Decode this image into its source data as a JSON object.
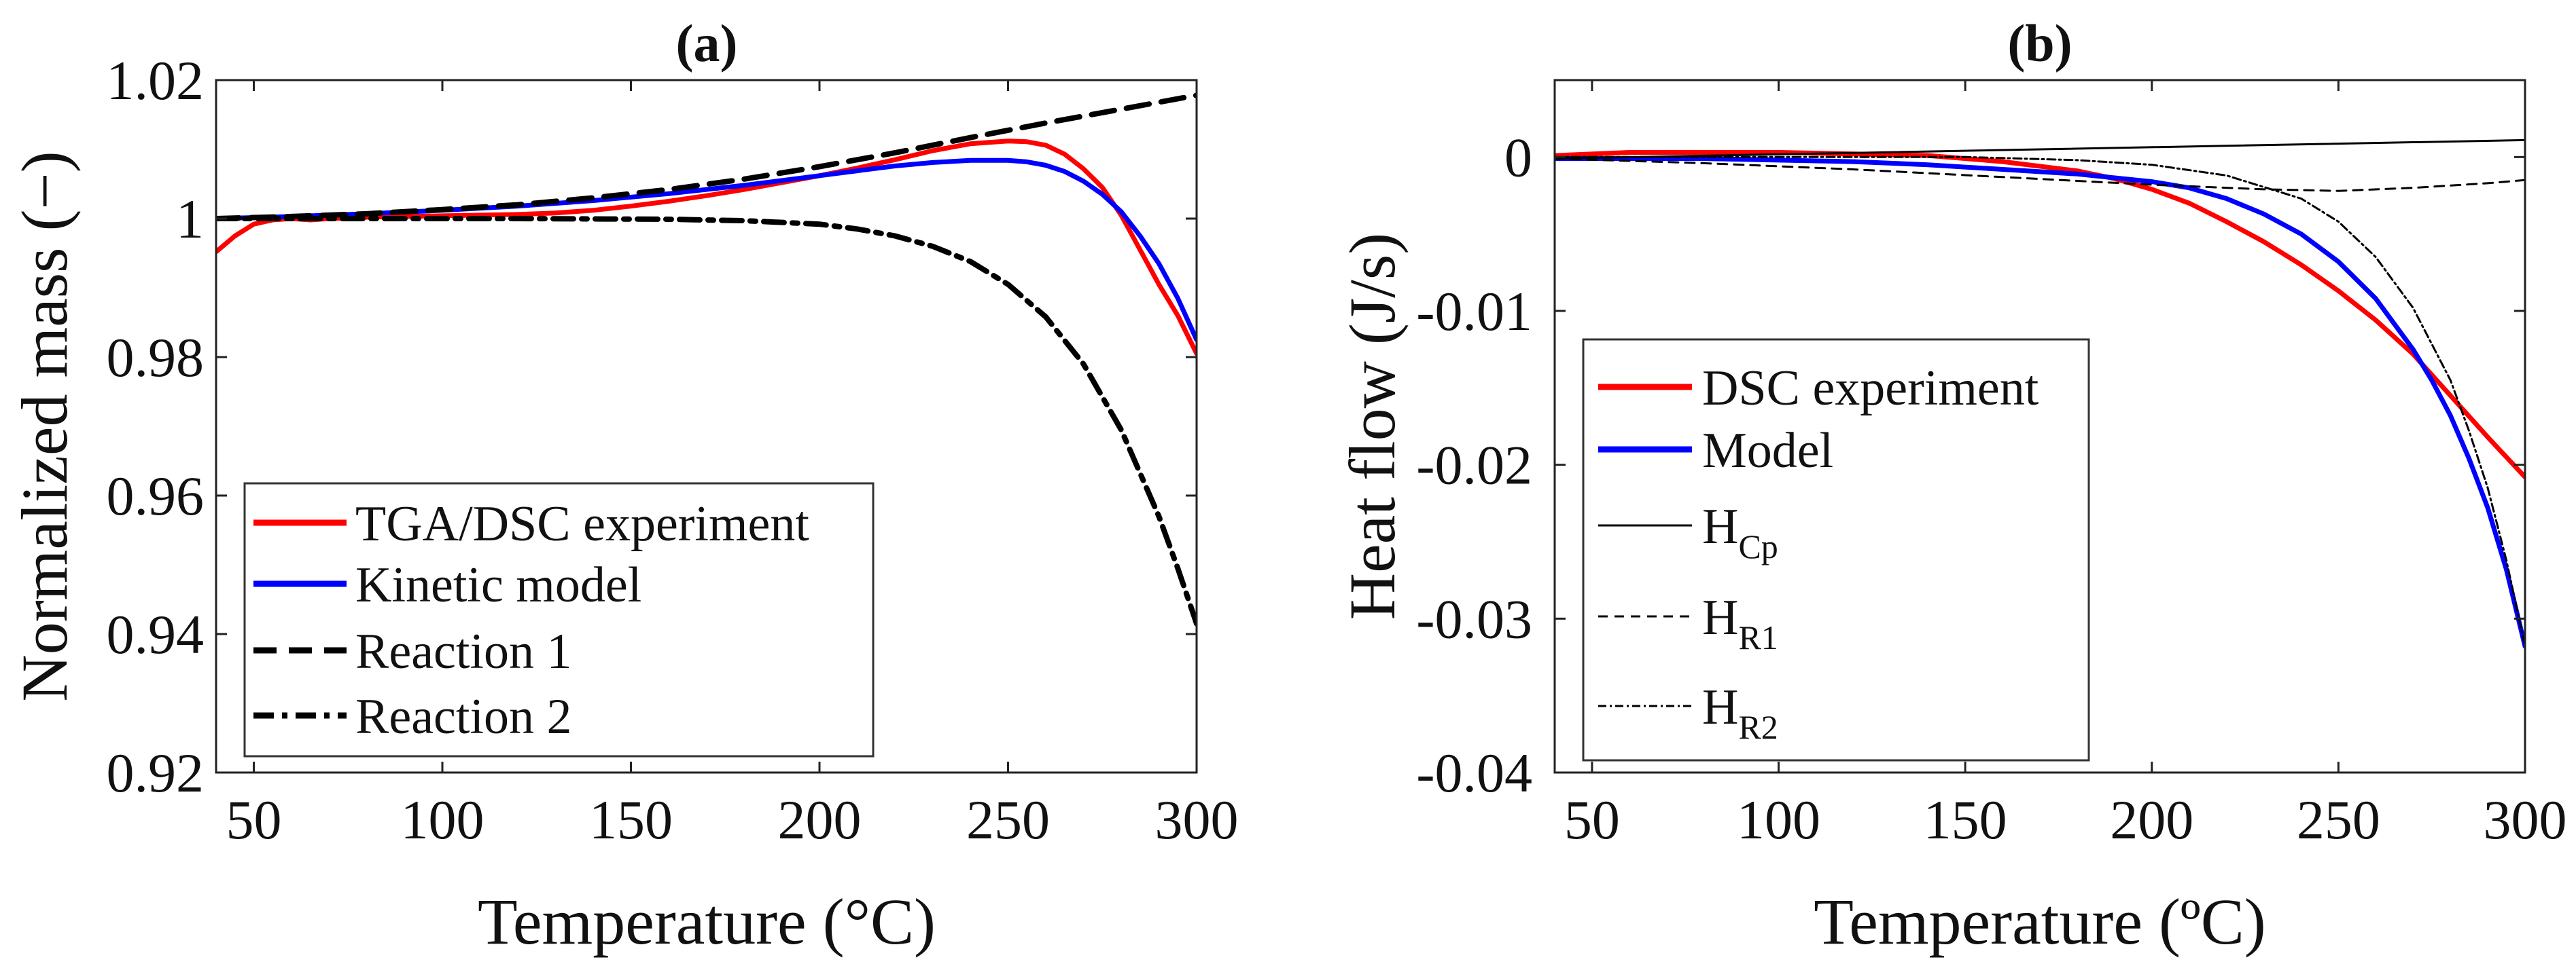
{
  "chart_data": [
    {
      "type": "line",
      "panel": "(a)",
      "title": "(a)",
      "xlabel": "Temperature (°C)",
      "ylabel": "Normalized mass (−)",
      "xlim": [
        40,
        300
      ],
      "ylim": [
        0.92,
        1.02
      ],
      "xticks": [
        50,
        100,
        150,
        200,
        250,
        300
      ],
      "yticks": [
        0.92,
        0.94,
        0.96,
        0.98,
        1,
        1.02
      ],
      "xtick_labels": [
        "50",
        "100",
        "150",
        "200",
        "250",
        "300"
      ],
      "ytick_labels": [
        "0.92",
        "0.94",
        "0.96",
        "0.98",
        "1",
        "1.02"
      ],
      "legend_position": "bottom-left",
      "series": [
        {
          "name": "TGA/DSC experiment",
          "color": "#ff0000",
          "style": "solid",
          "x": [
            40,
            45,
            50,
            55,
            60,
            65,
            70,
            80,
            90,
            100,
            110,
            120,
            130,
            140,
            150,
            160,
            170,
            180,
            190,
            200,
            210,
            220,
            230,
            240,
            250,
            255,
            260,
            265,
            270,
            275,
            280,
            285,
            290,
            295,
            300
          ],
          "y": [
            0.9952,
            0.9975,
            0.9992,
            0.9998,
            1.0,
            0.9998,
            1.0,
            1.0002,
            1.0003,
            1.0004,
            1.0005,
            1.0006,
            1.0008,
            1.0012,
            1.0018,
            1.0025,
            1.0033,
            1.0042,
            1.0052,
            1.0062,
            1.0073,
            1.0085,
            1.0098,
            1.0108,
            1.0112,
            1.0111,
            1.0106,
            1.0093,
            1.0072,
            1.0045,
            1.0005,
            0.9955,
            0.9905,
            0.986,
            0.9805
          ]
        },
        {
          "name": "Kinetic model",
          "color": "#0000ff",
          "style": "solid",
          "x": [
            40,
            60,
            80,
            100,
            120,
            140,
            160,
            180,
            200,
            210,
            220,
            230,
            240,
            250,
            255,
            260,
            265,
            270,
            275,
            280,
            285,
            290,
            295,
            300
          ],
          "y": [
            1.0,
            1.0003,
            1.0007,
            1.0012,
            1.0018,
            1.0026,
            1.0036,
            1.0048,
            1.0062,
            1.0069,
            1.0076,
            1.0081,
            1.0084,
            1.0084,
            1.0082,
            1.0077,
            1.0068,
            1.0054,
            1.0035,
            1.001,
            0.9975,
            0.9935,
            0.9885,
            0.9825
          ]
        },
        {
          "name": "Reaction 1",
          "color": "#000000",
          "style": "dashed",
          "x": [
            40,
            60,
            80,
            100,
            120,
            140,
            160,
            180,
            200,
            220,
            240,
            260,
            280,
            300
          ],
          "y": [
            1.0,
            1.0003,
            1.0007,
            1.0013,
            1.002,
            1.003,
            1.0042,
            1.0057,
            1.0075,
            1.0095,
            1.0117,
            1.0138,
            1.0158,
            1.0178
          ]
        },
        {
          "name": "Reaction 2",
          "color": "#000000",
          "style": "dashdot",
          "x": [
            40,
            80,
            120,
            160,
            180,
            200,
            210,
            220,
            230,
            240,
            250,
            260,
            270,
            280,
            290,
            295,
            300
          ],
          "y": [
            1.0,
            1.0,
            1.0,
            0.9999,
            0.9997,
            0.9992,
            0.9985,
            0.9975,
            0.996,
            0.9938,
            0.9905,
            0.9858,
            0.979,
            0.9695,
            0.957,
            0.9495,
            0.9415
          ]
        }
      ]
    },
    {
      "type": "line",
      "panel": "(b)",
      "title": "(b)",
      "xlabel": "Temperature (ºC)",
      "ylabel": "Heat flow (J/s)",
      "xlim": [
        40,
        300
      ],
      "ylim": [
        -0.04,
        0.005
      ],
      "xticks": [
        50,
        100,
        150,
        200,
        250,
        300
      ],
      "yticks": [
        -0.04,
        -0.03,
        -0.02,
        -0.01,
        0
      ],
      "xtick_labels": [
        "50",
        "100",
        "150",
        "200",
        "250",
        "300"
      ],
      "ytick_labels": [
        "-0.04",
        "-0.03",
        "-0.02",
        "-0.01",
        "0"
      ],
      "legend_position": "left",
      "series": [
        {
          "name": "DSC experiment",
          "color": "#ff0000",
          "style": "solid",
          "x": [
            40,
            60,
            80,
            100,
            120,
            140,
            160,
            180,
            190,
            200,
            210,
            220,
            230,
            240,
            250,
            260,
            270,
            280,
            290,
            300
          ],
          "y": [
            0.0001,
            0.0003,
            0.0003,
            0.0003,
            0.0002,
            0.0001,
            -0.0003,
            -0.0009,
            -0.0014,
            -0.0021,
            -0.003,
            -0.0042,
            -0.0055,
            -0.007,
            -0.0087,
            -0.0106,
            -0.0128,
            -0.0155,
            -0.0182,
            -0.0208
          ]
        },
        {
          "name": "Model",
          "color": "#0000ff",
          "style": "solid",
          "x": [
            40,
            60,
            80,
            100,
            120,
            140,
            160,
            180,
            200,
            210,
            220,
            230,
            240,
            250,
            260,
            270,
            275,
            280,
            285,
            290,
            295,
            300
          ],
          "y": [
            -0.0001,
            -0.0001,
            -0.0001,
            -0.0002,
            -0.0003,
            -0.0005,
            -0.0008,
            -0.0011,
            -0.0016,
            -0.002,
            -0.0027,
            -0.0037,
            -0.005,
            -0.0068,
            -0.0092,
            -0.0125,
            -0.0145,
            -0.0168,
            -0.0196,
            -0.0228,
            -0.0268,
            -0.0318
          ]
        },
        {
          "name": "H",
          "sub": "Cp",
          "color": "#000000",
          "style": "thin-solid",
          "x": [
            40,
            300
          ],
          "y": [
            -0.0001,
            0.0011
          ]
        },
        {
          "name": "H",
          "sub": "R1",
          "color": "#000000",
          "style": "thin-dashed",
          "x": [
            40,
            80,
            120,
            160,
            200,
            230,
            250,
            270,
            290,
            300
          ],
          "y": [
            -0.0001,
            -0.0004,
            -0.0008,
            -0.0013,
            -0.0018,
            -0.0021,
            -0.0022,
            -0.002,
            -0.0017,
            -0.0015
          ]
        },
        {
          "name": "H",
          "sub": "R2",
          "color": "#000000",
          "style": "thin-dashdot",
          "x": [
            40,
            100,
            150,
            180,
            200,
            220,
            240,
            250,
            260,
            270,
            280,
            285,
            290,
            295,
            300
          ],
          "y": [
            0.0,
            0.0,
            0.0,
            -0.0002,
            -0.0005,
            -0.0012,
            -0.0027,
            -0.0042,
            -0.0065,
            -0.0098,
            -0.0145,
            -0.0178,
            -0.0215,
            -0.0262,
            -0.0318
          ]
        }
      ]
    }
  ]
}
